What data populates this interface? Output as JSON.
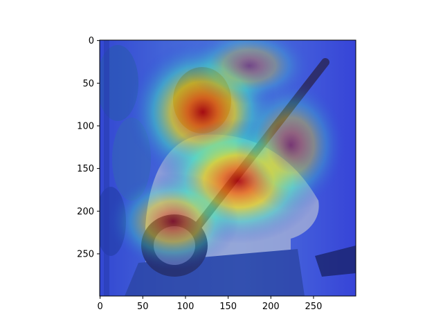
{
  "chart_data": {
    "type": "heatmap",
    "title": "",
    "xlabel": "",
    "ylabel": "",
    "xlim": [
      0,
      299
    ],
    "ylim": [
      299,
      0
    ],
    "x_ticks": [
      0,
      50,
      100,
      150,
      200,
      250
    ],
    "y_ticks": [
      0,
      50,
      100,
      150,
      200,
      250
    ],
    "colormap": "jet",
    "background_image": "photo of a man with glasses and a mustache playing a banjo outdoors",
    "hotspots": [
      {
        "x": 150,
        "y": 140,
        "intensity": 1.0
      },
      {
        "x": 110,
        "y": 85,
        "intensity": 0.95
      },
      {
        "x": 165,
        "y": 200,
        "intensity": 0.9
      },
      {
        "x": 240,
        "y": 120,
        "intensity": 0.6
      },
      {
        "x": 80,
        "y": 210,
        "intensity": 0.55
      },
      {
        "x": 185,
        "y": 45,
        "intensity": 0.45
      }
    ],
    "grid": false,
    "legend": "none"
  }
}
